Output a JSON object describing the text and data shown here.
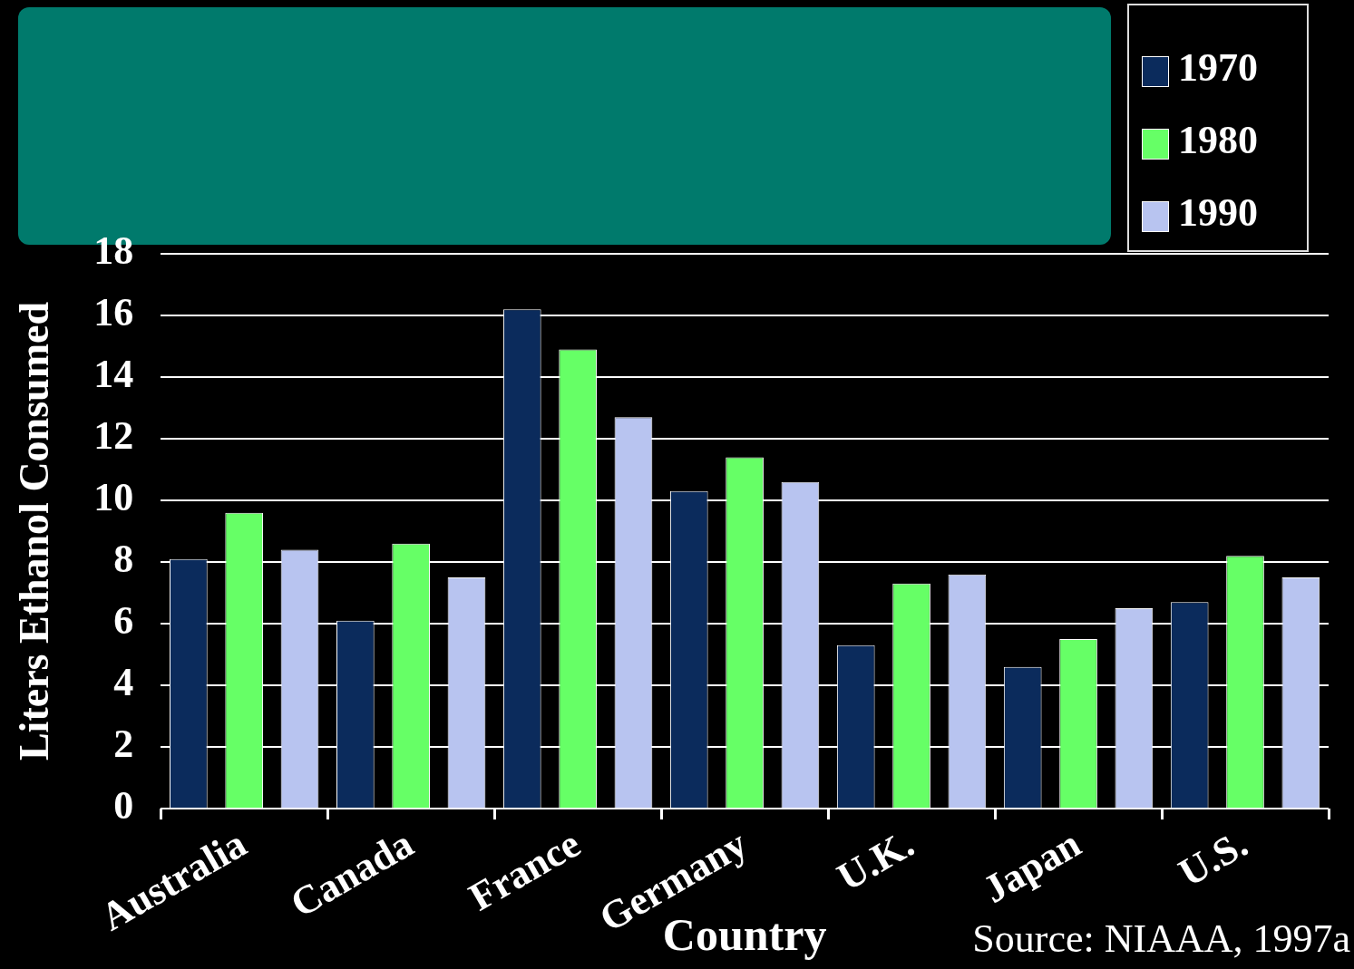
{
  "chart_data": {
    "type": "bar",
    "xlabel": "Country",
    "ylabel": "Liters Ethanol Consumed",
    "categories": [
      "Australia",
      "Canada",
      "France",
      "Germany",
      "U.K.",
      "Japan",
      "U.S."
    ],
    "series": [
      {
        "name": "1970",
        "color": "#0b2b5c",
        "values": [
          8.1,
          6.1,
          16.2,
          10.3,
          5.3,
          4.6,
          6.7
        ]
      },
      {
        "name": "1980",
        "color": "#66ff66",
        "values": [
          9.6,
          8.6,
          14.9,
          11.4,
          7.3,
          5.5,
          8.2
        ]
      },
      {
        "name": "1990",
        "color": "#b8c4f0",
        "values": [
          8.4,
          7.5,
          12.7,
          10.6,
          7.6,
          6.5,
          7.5
        ]
      }
    ],
    "ylim": [
      0,
      18
    ],
    "yticks": [
      0,
      2,
      4,
      6,
      8,
      10,
      12,
      14,
      16,
      18
    ],
    "grid": "y",
    "legend": "top right",
    "annotations": [
      "Source: NIAAA, 1997a"
    ]
  }
}
